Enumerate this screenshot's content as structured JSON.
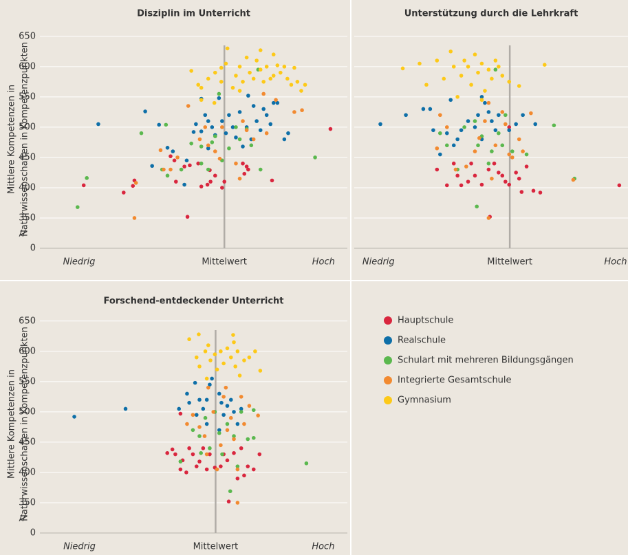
{
  "chart_data": [
    {
      "type": "scatter",
      "title": "Disziplin im Unterricht",
      "ylabel": [
        "Mittlere Kompetenzen in",
        "Naturwissenschaften in Kompetenzpunkten"
      ],
      "xlim": [
        -2.4,
        1.6
      ],
      "xticks": [
        {
          "value": -1.89,
          "label": "Niedrig"
        },
        {
          "value": 0,
          "label": "Mittelwert"
        },
        {
          "value": 1.29,
          "label": "Hoch"
        }
      ],
      "ylim": [
        300,
        660
      ],
      "yticks": [
        0,
        350,
        400,
        450,
        500,
        550,
        600,
        650
      ],
      "y_axis_break": true,
      "grid": true,
      "series": [
        {
          "name": "Hauptschule",
          "color": "#d9263e",
          "x": [
            -1.83,
            -1.31,
            -1.19,
            -1.17,
            -0.7,
            -0.65,
            -0.63,
            -0.48,
            -0.45,
            -0.3,
            -0.22,
            -0.19,
            -0.18,
            -0.12,
            -0.03,
            0.0,
            0.24,
            0.26,
            0.29,
            0.31,
            0.62,
            1.38,
            -0.52,
            -0.34
          ],
          "values": [
            404,
            392,
            403,
            412,
            452,
            445,
            410,
            352,
            437,
            402,
            405,
            429,
            410,
            420,
            400,
            410,
            440,
            423,
            435,
            430,
            412,
            497,
            435,
            440
          ]
        },
        {
          "name": "Realschule",
          "color": "#0e6fa8",
          "x": [
            -1.64,
            -1.03,
            -0.94,
            -0.85,
            -0.74,
            -0.67,
            -0.52,
            -0.49,
            -0.4,
            -0.37,
            -0.3,
            -0.25,
            -0.21,
            -0.16,
            -0.12,
            -0.07,
            -0.03,
            0.06,
            0.11,
            0.15,
            0.2,
            0.24,
            0.29,
            0.31,
            0.35,
            0.42,
            0.47,
            0.51,
            0.6,
            0.64,
            0.69,
            0.78,
            0.83,
            -0.3,
            -0.21,
            0.38,
            0.55,
            0.02
          ],
          "values": [
            505,
            526,
            436,
            504,
            466,
            460,
            405,
            445,
            492,
            505,
            493,
            520,
            510,
            500,
            487,
            548,
            510,
            520,
            500,
            483,
            525,
            468,
            500,
            552,
            480,
            510,
            495,
            530,
            505,
            540,
            540,
            480,
            490,
            547,
            465,
            535,
            520,
            490
          ]
        },
        {
          "name": "Schulart mit mehreren Bildungsgängen",
          "color": "#5bb84e",
          "x": [
            -1.91,
            -1.79,
            -1.08,
            -0.76,
            -0.74,
            -0.81,
            -0.56,
            -0.43,
            -0.3,
            -0.21,
            -0.16,
            -0.12,
            -0.03,
            0.06,
            0.15,
            0.2,
            0.29,
            0.35,
            0.47,
            0.44,
            1.18,
            -0.07,
            -0.3
          ],
          "values": [
            368,
            416,
            490,
            504,
            420,
            430,
            430,
            473,
            440,
            430,
            475,
            485,
            445,
            465,
            500,
            480,
            497,
            470,
            430,
            595,
            450,
            555,
            468
          ]
        },
        {
          "name": "Integrierte Gesamtschule",
          "color": "#f28a30",
          "x": [
            -1.17,
            -1.15,
            -0.83,
            -0.79,
            -0.7,
            -0.61,
            -0.47,
            -0.32,
            -0.25,
            -0.21,
            -0.12,
            -0.06,
            0.15,
            0.2,
            0.24,
            0.29,
            0.38,
            0.51,
            0.55,
            0.67,
            0.91,
            1.01,
            -0.03
          ],
          "values": [
            350,
            408,
            462,
            430,
            430,
            450,
            535,
            480,
            500,
            470,
            460,
            448,
            440,
            415,
            510,
            495,
            480,
            555,
            490,
            545,
            525,
            528,
            500
          ]
        },
        {
          "name": "Gymnasium",
          "color": "#fdc918",
          "x": [
            -0.43,
            -0.34,
            -0.3,
            -0.3,
            -0.21,
            -0.12,
            -0.04,
            0.02,
            0.04,
            0.11,
            0.15,
            0.2,
            0.24,
            0.29,
            0.33,
            0.38,
            0.42,
            0.47,
            0.51,
            0.55,
            0.6,
            0.64,
            0.69,
            0.73,
            0.78,
            0.82,
            0.87,
            0.91,
            0.95,
            1.0,
            1.05,
            0.47,
            0.64,
            0.2,
            -0.04,
            -0.13
          ],
          "values": [
            593,
            570,
            565,
            545,
            580,
            590,
            598,
            605,
            630,
            565,
            585,
            600,
            575,
            615,
            590,
            580,
            610,
            595,
            575,
            600,
            580,
            620,
            602,
            590,
            600,
            580,
            570,
            598,
            575,
            560,
            570,
            627,
            585,
            560,
            575,
            540
          ]
        }
      ]
    },
    {
      "type": "scatter",
      "title": "Unterstützung durch die Lehrkraft",
      "xlim": [
        -2.5,
        1.9
      ],
      "xticks": [
        {
          "value": -2.11,
          "label": "Niedrig"
        },
        {
          "value": 0,
          "label": "Mittelwert"
        },
        {
          "value": 1.7,
          "label": "Hoch"
        }
      ],
      "ylim": [
        300,
        660
      ],
      "yticks": [
        0,
        350,
        400,
        450,
        500,
        550,
        600,
        650
      ],
      "y_axis_break": true,
      "grid": true,
      "series": [
        {
          "color": "#d9263e",
          "x": [
            -1.17,
            -1.01,
            -0.9,
            -0.84,
            -0.78,
            -0.67,
            -0.62,
            -0.56,
            -0.45,
            -0.34,
            -0.32,
            -0.25,
            -0.18,
            -0.12,
            -0.07,
            -0.01,
            0.1,
            0.15,
            0.19,
            0.27,
            0.38,
            0.49,
            1.76,
            -0.01
          ],
          "values": [
            430,
            404,
            440,
            420,
            404,
            410,
            440,
            420,
            405,
            430,
            352,
            440,
            425,
            420,
            410,
            405,
            425,
            415,
            393,
            435,
            395,
            392,
            404,
            500
          ]
        },
        {
          "color": "#0e6fa8",
          "x": [
            -2.08,
            -1.67,
            -1.39,
            -1.28,
            -1.23,
            -1.12,
            -1.01,
            -0.9,
            -0.84,
            -0.78,
            -0.67,
            -0.56,
            -0.51,
            -0.45,
            -0.4,
            -0.34,
            -0.29,
            -0.23,
            -0.18,
            -0.01,
            0.1,
            0.21,
            0.41,
            -0.45,
            -0.95
          ],
          "values": [
            505,
            520,
            530,
            530,
            495,
            455,
            490,
            470,
            480,
            495,
            510,
            500,
            520,
            480,
            540,
            525,
            510,
            495,
            520,
            495,
            505,
            520,
            505,
            550,
            545
          ]
        },
        {
          "color": "#5bb84e",
          "x": [
            -1.12,
            -1.01,
            -0.84,
            -0.73,
            -0.56,
            -0.51,
            -0.45,
            -0.34,
            -0.29,
            -0.23,
            -0.18,
            -0.12,
            -0.07,
            0.04,
            0.27,
            0.71,
            1.04,
            -0.53
          ],
          "values": [
            490,
            470,
            430,
            500,
            510,
            470,
            485,
            440,
            460,
            595,
            490,
            470,
            520,
            460,
            455,
            503,
            415,
            369
          ]
        },
        {
          "color": "#f28a30",
          "x": [
            -1.17,
            -1.12,
            -1.01,
            -0.87,
            -0.7,
            -0.56,
            -0.49,
            -0.4,
            -0.34,
            -0.29,
            -0.23,
            -0.12,
            -0.07,
            0.04,
            0.15,
            0.21,
            0.34,
            1.02,
            -0.34,
            -0.01
          ],
          "values": [
            465,
            520,
            500,
            430,
            435,
            460,
            482,
            510,
            540,
            415,
            470,
            525,
            505,
            450,
            480,
            460,
            523,
            413,
            350,
            455
          ]
        },
        {
          "color": "#fdc918",
          "x": [
            -1.72,
            -1.45,
            -1.34,
            -1.17,
            -1.06,
            -0.95,
            -0.9,
            -0.78,
            -0.73,
            -0.67,
            -0.62,
            -0.56,
            -0.51,
            -0.45,
            -0.4,
            -0.34,
            -0.29,
            -0.23,
            -0.18,
            -0.12,
            -0.01,
            0.15,
            0.56,
            -0.84,
            -0.45
          ],
          "values": [
            597,
            605,
            570,
            610,
            580,
            625,
            600,
            585,
            610,
            600,
            570,
            620,
            590,
            605,
            560,
            595,
            580,
            610,
            600,
            585,
            575,
            568,
            603,
            550,
            545
          ]
        }
      ]
    },
    {
      "type": "scatter",
      "title": "Forschend-entdeckender Unterricht",
      "ylabel": [
        "Mittlere Kompetenzen in",
        "Naturwissenschaften in Kompetenzpunkten"
      ],
      "xlim": [
        -2.4,
        1.8
      ],
      "xticks": [
        {
          "value": -1.86,
          "label": "Niedrig"
        },
        {
          "value": 0,
          "label": "Mittelwert"
        },
        {
          "value": 1.47,
          "label": "Hoch"
        }
      ],
      "ylim": [
        300,
        660
      ],
      "yticks": [
        0,
        350,
        400,
        450,
        500,
        550,
        600,
        650
      ],
      "y_axis_break": true,
      "grid": true,
      "series": [
        {
          "color": "#d9263e",
          "x": [
            -0.66,
            -0.59,
            -0.55,
            -0.48,
            -0.45,
            -0.4,
            -0.36,
            -0.31,
            -0.26,
            -0.22,
            -0.17,
            -0.12,
            -0.08,
            -0.01,
            0.07,
            0.11,
            0.16,
            0.25,
            0.3,
            0.35,
            0.39,
            0.44,
            0.52,
            0.6,
            -0.48,
            0.18
          ],
          "values": [
            432,
            438,
            430,
            405,
            420,
            400,
            440,
            430,
            410,
            418,
            440,
            405,
            430,
            408,
            410,
            430,
            420,
            432,
            390,
            440,
            395,
            410,
            405,
            430,
            497,
            352
          ]
        },
        {
          "color": "#0e6fa8",
          "x": [
            -1.93,
            -1.23,
            -0.5,
            -0.39,
            -0.36,
            -0.26,
            -0.22,
            -0.17,
            -0.12,
            -0.08,
            -0.05,
            -0.01,
            0.05,
            0.08,
            0.11,
            0.16,
            0.21,
            0.25,
            0.3,
            0.35,
            -0.12,
            -0.28,
            0.05
          ],
          "values": [
            492,
            505,
            505,
            530,
            515,
            495,
            520,
            505,
            480,
            545,
            555,
            500,
            530,
            515,
            495,
            510,
            520,
            500,
            480,
            505,
            520,
            548,
            470
          ]
        },
        {
          "color": "#5bb84e",
          "x": [
            -0.48,
            -0.31,
            -0.22,
            -0.14,
            -0.08,
            -0.01,
            0.05,
            0.09,
            0.16,
            0.2,
            0.25,
            0.3,
            0.35,
            0.44,
            0.52,
            0.52,
            1.24,
            -0.2
          ],
          "values": [
            418,
            470,
            460,
            490,
            440,
            500,
            465,
            430,
            480,
            369,
            460,
            410,
            500,
            455,
            503,
            457,
            415,
            432
          ]
        },
        {
          "color": "#f28a30",
          "x": [
            -0.39,
            -0.31,
            -0.22,
            -0.15,
            -0.1,
            -0.03,
            0.02,
            0.07,
            0.11,
            0.16,
            0.21,
            0.25,
            0.3,
            0.35,
            0.39,
            0.46,
            0.58,
            0.3,
            -0.12,
            0.14
          ],
          "values": [
            480,
            495,
            475,
            460,
            540,
            500,
            405,
            445,
            525,
            470,
            490,
            455,
            405,
            525,
            480,
            510,
            494,
            350,
            430,
            540
          ]
        },
        {
          "color": "#fdc918",
          "x": [
            -0.36,
            -0.26,
            -0.22,
            -0.14,
            -0.1,
            -0.07,
            -0.01,
            0.02,
            0.07,
            0.11,
            0.16,
            0.21,
            0.24,
            0.27,
            0.3,
            0.33,
            0.39,
            0.46,
            0.54,
            0.61,
            -0.23,
            -0.12,
            0.25
          ],
          "values": [
            620,
            590,
            575,
            600,
            610,
            585,
            595,
            570,
            600,
            580,
            605,
            590,
            627,
            575,
            600,
            560,
            585,
            590,
            600,
            568,
            628,
            555,
            615
          ]
        }
      ]
    }
  ]
}
